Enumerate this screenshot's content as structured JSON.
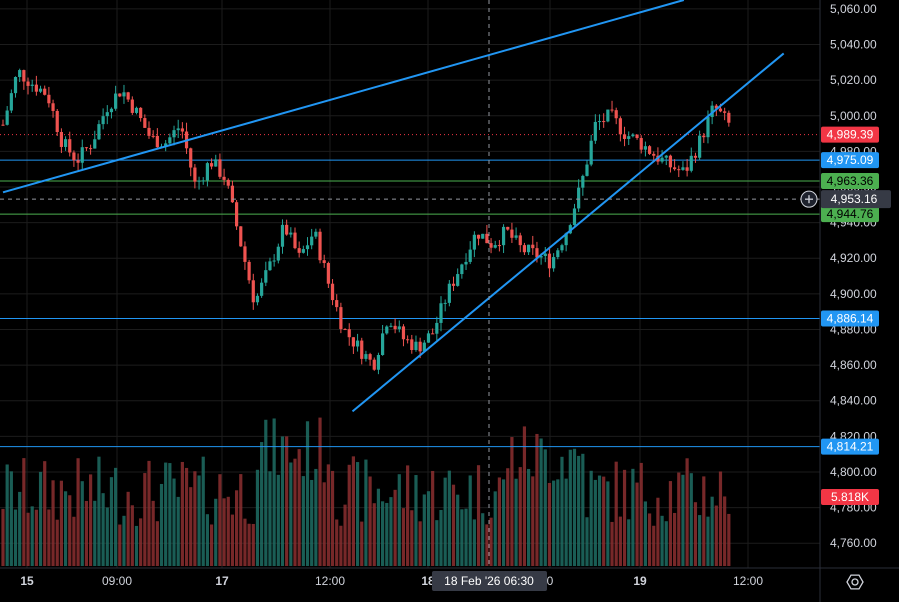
{
  "chart_data": {
    "type": "candlestick",
    "y_axis": {
      "range": [
        4750,
        5065
      ],
      "ticks": [
        "5,060.00",
        "5,040.00",
        "5,020.00",
        "5,000.00",
        "4,980.00",
        "4,960.00",
        "4,940.00",
        "4,920.00",
        "4,900.00",
        "4,880.00",
        "4,860.00",
        "4,840.00",
        "4,820.00",
        "4,800.00",
        "4,780.00",
        "4,760.00"
      ]
    },
    "x_axis": {
      "labels": [
        {
          "text": "15",
          "bold": true
        },
        {
          "text": "09:00",
          "bold": false
        },
        {
          "text": "17",
          "bold": true
        },
        {
          "text": "12:00",
          "bold": false
        },
        {
          "text": "18",
          "bold": true
        },
        {
          "text": "0",
          "bold": false
        },
        {
          "text": "19",
          "bold": true
        },
        {
          "text": "12:00",
          "bold": false
        }
      ]
    },
    "crosshair": {
      "time_label": "18 Feb '26   06:30",
      "price_label": "4,953.16",
      "price": 4953.16
    },
    "current_price": {
      "label": "4,989.39",
      "value": 4989.39,
      "color": "#f23645"
    },
    "volume_label": {
      "label": "5.818K",
      "color": "#f23645"
    },
    "horizontal_levels": [
      {
        "label": "4,975.09",
        "value": 4975.09,
        "color": "#2196f3"
      },
      {
        "label": "4,886.14",
        "value": 4886.14,
        "color": "#2196f3"
      },
      {
        "label": "4,814.21",
        "value": 4814.21,
        "color": "#2196f3"
      },
      {
        "label": "4,963.36",
        "value": 4963.36,
        "color": "#4caf50"
      },
      {
        "label": "4,944.76",
        "value": 4944.76,
        "color": "#4caf50"
      }
    ],
    "trendlines": [
      {
        "from": [
          0,
          4957
        ],
        "to": [
          150,
          5065
        ],
        "color": "#2196f3"
      },
      {
        "from": [
          77,
          4834
        ],
        "to": [
          172,
          5035
        ],
        "color": "#2196f3"
      }
    ],
    "candles": [
      4995,
      5025,
      5018,
      5012,
      4985,
      4975,
      4985,
      5005,
      5015,
      5002,
      4987,
      4985,
      4995,
      4960,
      4975,
      4965,
      4930,
      4895,
      4915,
      4938,
      4920,
      4935,
      4905,
      4880,
      4870,
      4860,
      4888,
      4875,
      4870,
      4878,
      4900,
      4918,
      4935,
      4928,
      4935,
      4925,
      4922,
      4918,
      4935,
      4960,
      4995,
      5000,
      4990,
      4985,
      4978,
      4972,
      4968,
      4985,
      5005,
      4995
    ]
  },
  "ui": {
    "settings_icon": "gear-hexagon-icon",
    "crosshair_icon": "plus-circle-icon",
    "colors": {
      "up": "#26a69a",
      "down": "#ef5350",
      "grid": "#1c1c1c",
      "axis_text": "#d1d4dc"
    }
  }
}
